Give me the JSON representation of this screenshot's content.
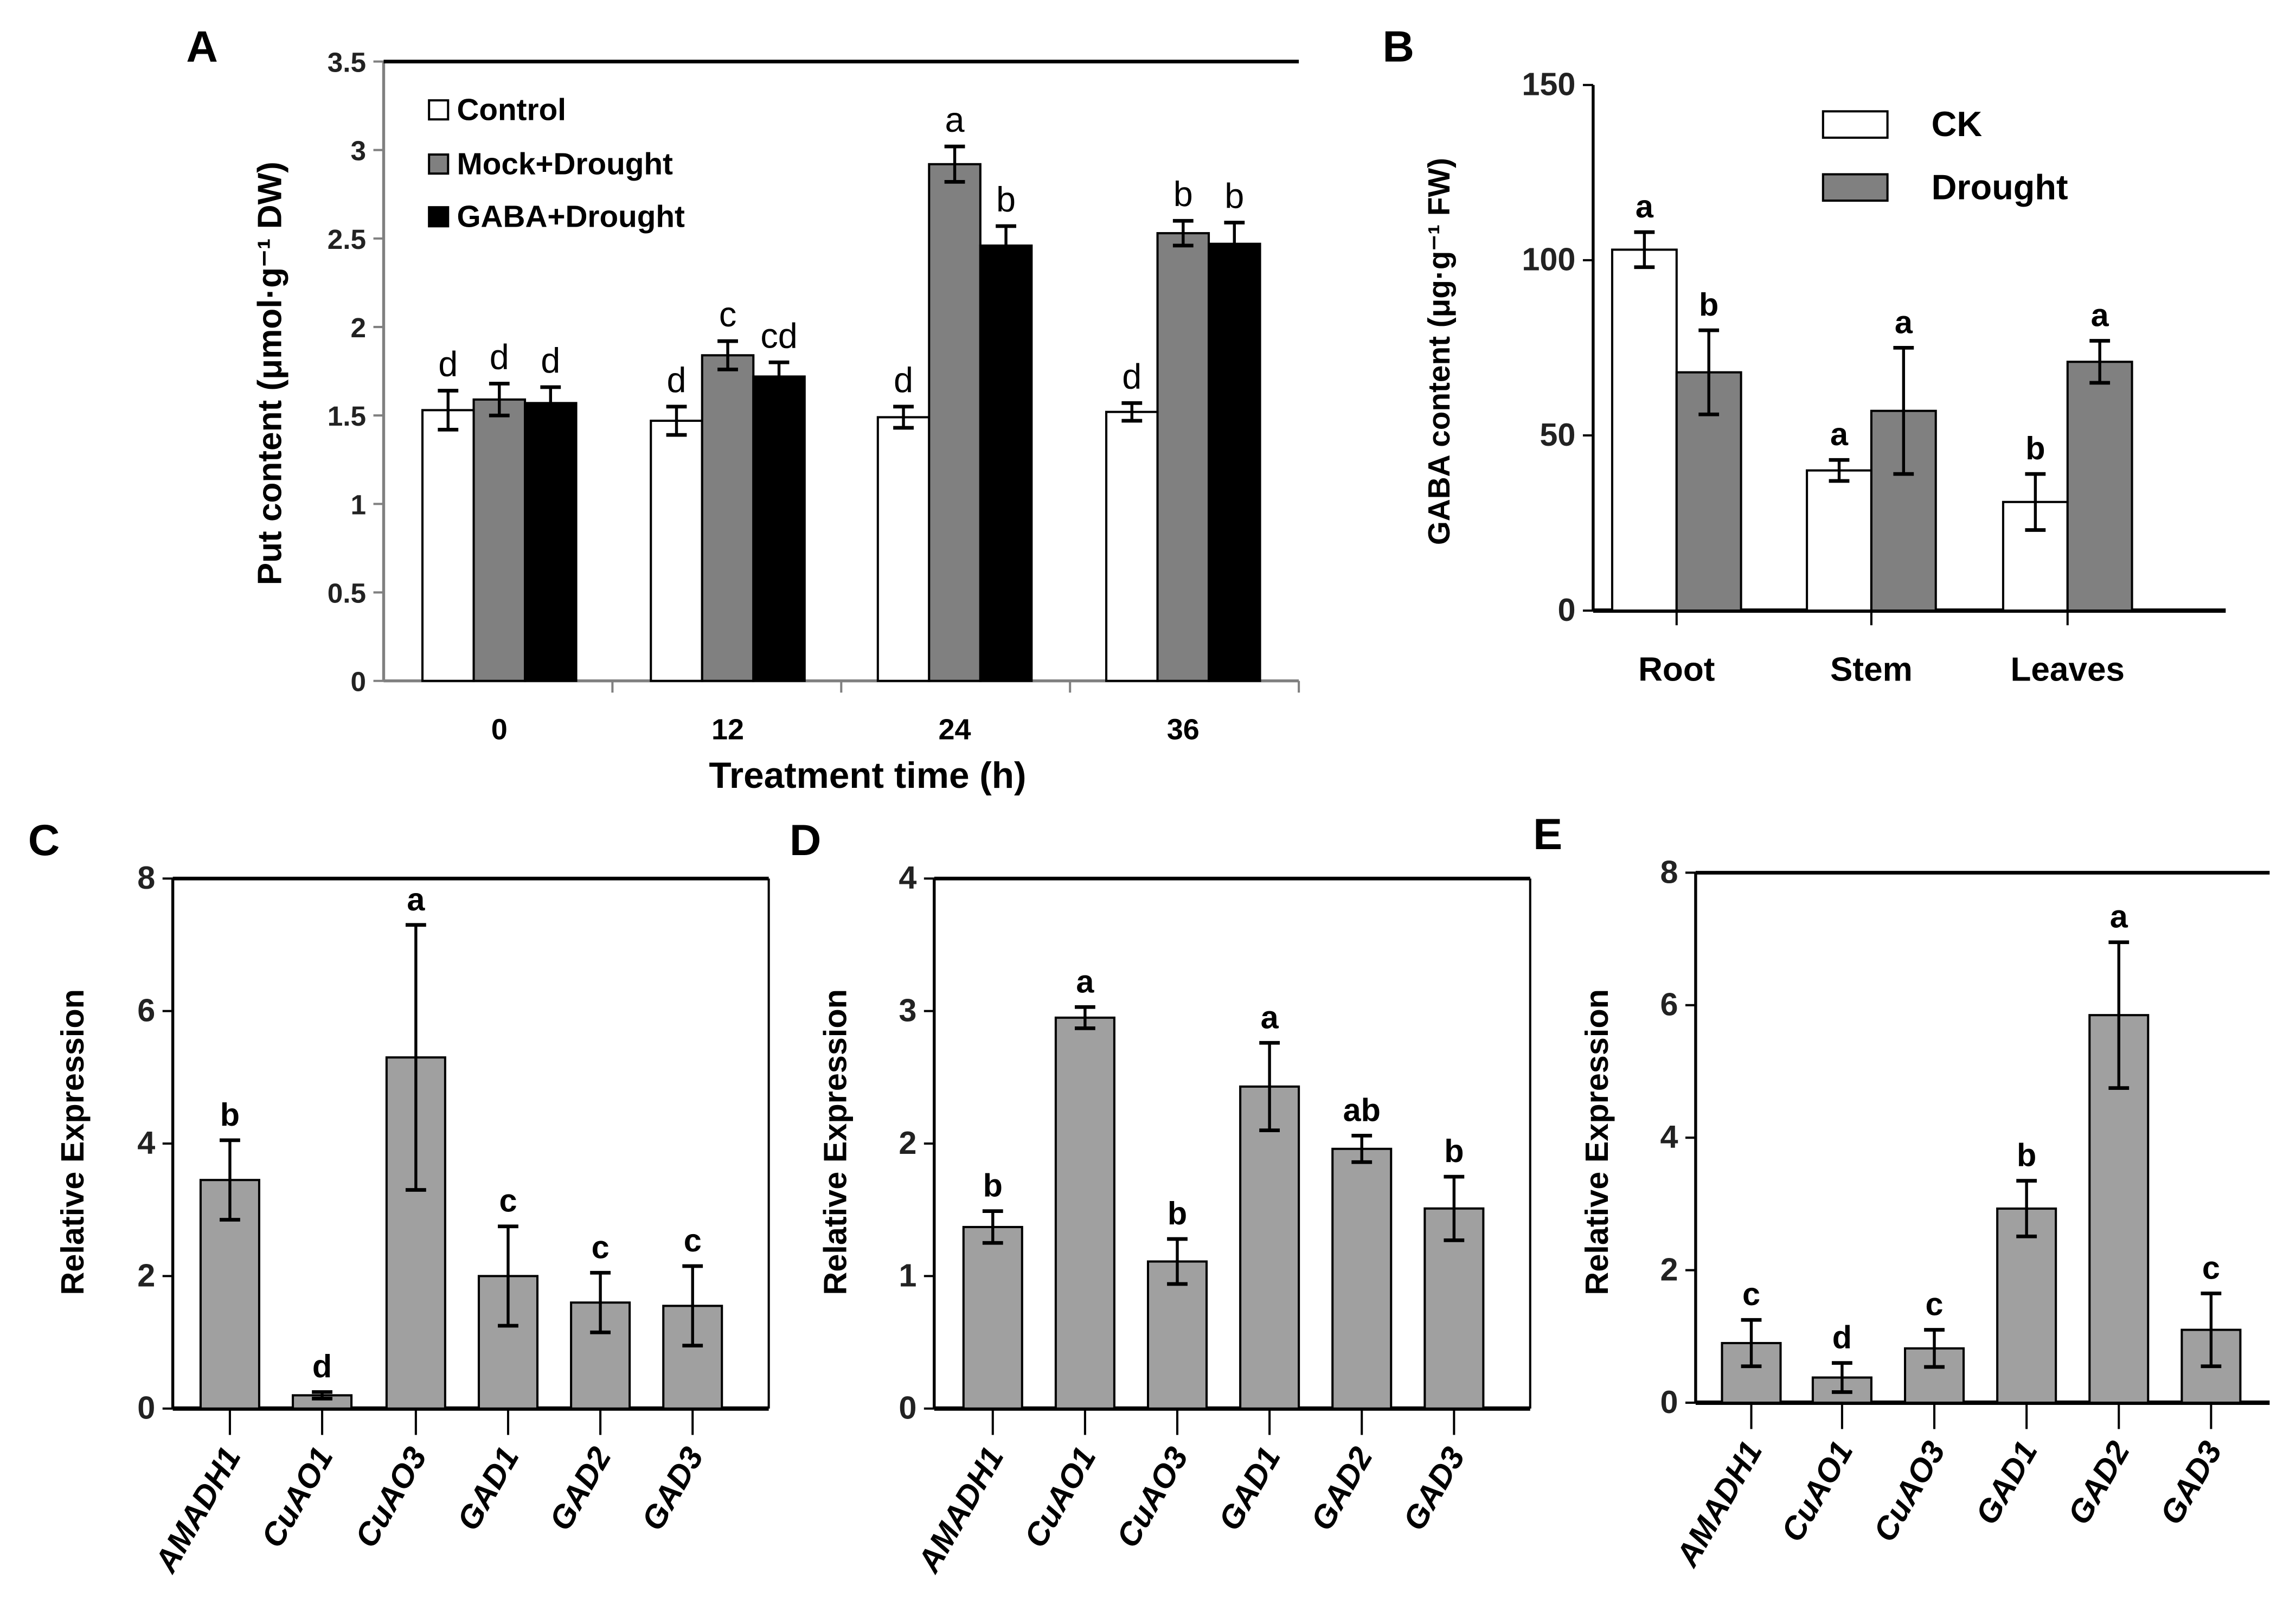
{
  "colors": {
    "white": "#ffffff",
    "gray": "#808080",
    "black": "#000000",
    "expr_gray": "#a0a0a0"
  },
  "chart_data": [
    {
      "panel": "A",
      "type": "bar",
      "xlabel": "Treatment time (h)",
      "ylabel": "Put content (μmol·g⁻¹ DW)",
      "categories": [
        "0",
        "12",
        "24",
        "36"
      ],
      "ylim": [
        0,
        3.5
      ],
      "yticks": [
        "0",
        "0.5",
        "1",
        "1.5",
        "2",
        "2.5",
        "3",
        "3.5"
      ],
      "legend_position": "top-left",
      "series": [
        {
          "name": "Control",
          "color": "#ffffff",
          "values": [
            1.53,
            1.47,
            1.49,
            1.52
          ],
          "errors": [
            0.11,
            0.08,
            0.06,
            0.05
          ],
          "letters": [
            "d",
            "d",
            "d",
            "d"
          ]
        },
        {
          "name": "Mock+Drought",
          "color": "#808080",
          "values": [
            1.59,
            1.84,
            2.92,
            2.53
          ],
          "errors": [
            0.09,
            0.08,
            0.1,
            0.07
          ],
          "letters": [
            "d",
            "c",
            "a",
            "b"
          ]
        },
        {
          "name": "GABA+Drought",
          "color": "#000000",
          "values": [
            1.57,
            1.72,
            2.46,
            2.47
          ],
          "errors": [
            0.09,
            0.08,
            0.11,
            0.12
          ],
          "letters": [
            "d",
            "cd",
            "b",
            "b"
          ]
        }
      ]
    },
    {
      "panel": "B",
      "type": "bar",
      "xlabel": "",
      "ylabel": "GABA content (μg·g⁻¹ FW)",
      "categories": [
        "Root",
        "Stem",
        "Leaves"
      ],
      "ylim": [
        0,
        150
      ],
      "yticks": [
        "0",
        "50",
        "100",
        "150"
      ],
      "legend_position": "top-right",
      "series": [
        {
          "name": "CK",
          "color": "#ffffff",
          "values": [
            103,
            40,
            31
          ],
          "errors": [
            5,
            3,
            8
          ],
          "letters": [
            "a",
            "a",
            "b"
          ]
        },
        {
          "name": "Drought",
          "color": "#808080",
          "values": [
            68,
            57,
            71
          ],
          "errors": [
            12,
            18,
            6
          ],
          "letters": [
            "b",
            "a",
            "a"
          ]
        }
      ]
    },
    {
      "panel": "C",
      "type": "bar",
      "xlabel": "",
      "ylabel": "Relative Expression",
      "categories": [
        "AMADH1",
        "CuAO1",
        "CuAO3",
        "GAD1",
        "GAD2",
        "GAD3"
      ],
      "ylim": [
        0,
        8
      ],
      "yticks": [
        "0",
        "2",
        "4",
        "6",
        "8"
      ],
      "series": [
        {
          "name": "",
          "color": "#a0a0a0",
          "values": [
            3.45,
            0.2,
            5.3,
            2.0,
            1.6,
            1.55
          ],
          "errors": [
            0.6,
            0.05,
            2.0,
            0.75,
            0.45,
            0.6
          ],
          "letters": [
            "b",
            "d",
            "a",
            "c",
            "c",
            "c"
          ]
        }
      ]
    },
    {
      "panel": "D",
      "type": "bar",
      "xlabel": "",
      "ylabel": "Relative Expression",
      "categories": [
        "AMADH1",
        "CuAO1",
        "CuAO3",
        "GAD1",
        "GAD2",
        "GAD3"
      ],
      "ylim": [
        0,
        4
      ],
      "yticks": [
        "0",
        "1",
        "2",
        "3",
        "4"
      ],
      "series": [
        {
          "name": "",
          "color": "#a0a0a0",
          "values": [
            1.37,
            2.95,
            1.11,
            2.43,
            1.96,
            1.51
          ],
          "errors": [
            0.12,
            0.08,
            0.17,
            0.33,
            0.1,
            0.24
          ],
          "letters": [
            "b",
            "a",
            "b",
            "a",
            "ab",
            "b"
          ]
        }
      ]
    },
    {
      "panel": "E",
      "type": "bar",
      "xlabel": "",
      "ylabel": "Relative Expression",
      "categories": [
        "AMADH1",
        "CuAO1",
        "CuAO3",
        "GAD1",
        "GAD2",
        "GAD3"
      ],
      "ylim": [
        0,
        8
      ],
      "yticks": [
        "0",
        "2",
        "4",
        "6",
        "8"
      ],
      "series": [
        {
          "name": "",
          "color": "#a0a0a0",
          "values": [
            0.9,
            0.38,
            0.82,
            2.93,
            5.85,
            1.1
          ],
          "errors": [
            0.35,
            0.22,
            0.28,
            0.42,
            1.1,
            0.55
          ],
          "letters": [
            "c",
            "d",
            "c",
            "b",
            "a",
            "c"
          ]
        }
      ]
    }
  ]
}
